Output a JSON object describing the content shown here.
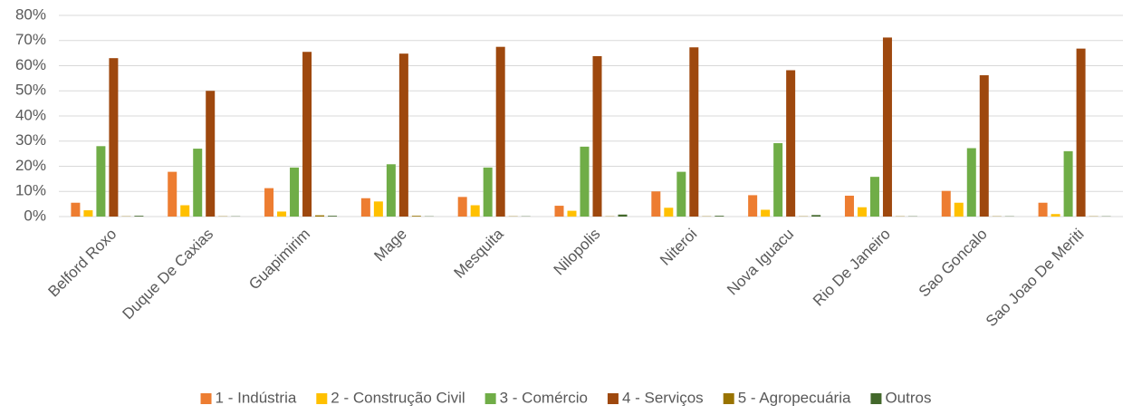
{
  "chart_data": {
    "type": "bar",
    "categories": [
      "Belford Roxo",
      "Duque De Caxias",
      "Guapimirim",
      "Mage",
      "Mesquita",
      "Nilopolis",
      "Niteroi",
      "Nova Iguacu",
      "Rio De Janeiro",
      "Sao Goncalo",
      "Sao Joao De Meriti"
    ],
    "series": [
      {
        "name": "1 - Indústria",
        "color": "#ed7d31",
        "values": [
          5.5,
          17.8,
          11.3,
          7.3,
          7.8,
          4.3,
          10,
          8.5,
          8.3,
          10.2,
          5.5
        ]
      },
      {
        "name": "2 - Construção Civil",
        "color": "#ffc000",
        "values": [
          2.5,
          4.5,
          2,
          6,
          4.5,
          2.3,
          3.5,
          2.7,
          3.7,
          5.5,
          1
        ]
      },
      {
        "name": "3 - Comércio",
        "color": "#70ad47",
        "values": [
          28,
          27,
          19.5,
          20.8,
          19.5,
          27.8,
          17.8,
          29.2,
          15.8,
          27.2,
          26
        ]
      },
      {
        "name": "4 - Serviços",
        "color": "#9e480e",
        "values": [
          63,
          50,
          65.5,
          64.8,
          67.5,
          63.8,
          67.3,
          58.2,
          71.2,
          56.2,
          66.8
        ]
      },
      {
        "name": "5 - Agropecuária",
        "color": "#997300",
        "values": [
          0.1,
          0.1,
          0.5,
          0.3,
          0.1,
          0.1,
          0.1,
          0.1,
          0.1,
          0.1,
          0.1
        ]
      },
      {
        "name": "Outros",
        "color": "#43682b",
        "values": [
          0.3,
          0.1,
          0.3,
          0.1,
          0.1,
          0.8,
          0.3,
          0.6,
          0.1,
          0.1,
          0.1
        ]
      }
    ],
    "ylim": [
      0,
      80
    ],
    "yticks": [
      {
        "value": 0,
        "label": "0%"
      },
      {
        "value": 10,
        "label": "10%"
      },
      {
        "value": 20,
        "label": "20%"
      },
      {
        "value": 30,
        "label": "30%"
      },
      {
        "value": 40,
        "label": "40%"
      },
      {
        "value": 50,
        "label": "50%"
      },
      {
        "value": 60,
        "label": "60%"
      },
      {
        "value": 70,
        "label": "70%"
      },
      {
        "value": 80,
        "label": "80%"
      }
    ],
    "grid": true
  }
}
